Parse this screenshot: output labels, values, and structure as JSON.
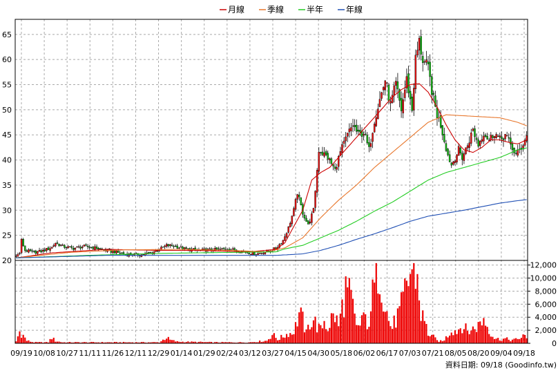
{
  "chart_data": {
    "type": "candlestick",
    "legend": [
      {
        "label": "月線",
        "color": "#cc0000"
      },
      {
        "label": "季線",
        "color": "#e8762b"
      },
      {
        "label": "半年",
        "color": "#22cc22"
      },
      {
        "label": "年線",
        "color": "#1f4fb4"
      }
    ],
    "x_tick_labels": [
      "09/19",
      "10/08",
      "10/27",
      "11/11",
      "11/26",
      "12/11",
      "12/29",
      "01/14",
      "01/29",
      "02/24",
      "03/12",
      "03/27",
      "04/15",
      "04/30",
      "05/18",
      "06/02",
      "06/17",
      "07/03",
      "07/21",
      "08/05",
      "08/20",
      "09/04",
      "09/18"
    ],
    "price_axis": {
      "ticks": [
        20,
        25,
        30,
        35,
        40,
        45,
        50,
        55,
        60,
        65
      ],
      "ylim": [
        20,
        68
      ]
    },
    "volume_axis": {
      "tick_labels": [
        "0",
        "2,000",
        "4,000",
        "6,000",
        "8,000",
        "10,000",
        "12,000"
      ],
      "tick_values": [
        0,
        2000,
        4000,
        6000,
        8000,
        10000,
        12000
      ],
      "ylim": [
        0,
        12500
      ]
    },
    "price_anchors": [
      [
        0,
        20.8
      ],
      [
        2,
        21.5
      ],
      [
        3,
        24.0
      ],
      [
        5,
        22.0
      ],
      [
        10,
        21.6
      ],
      [
        15,
        21.9
      ],
      [
        20,
        22.6
      ],
      [
        22,
        23.5
      ],
      [
        26,
        22.8
      ],
      [
        32,
        22.4
      ],
      [
        38,
        22.8
      ],
      [
        44,
        22.5
      ],
      [
        50,
        22.0
      ],
      [
        56,
        21.6
      ],
      [
        62,
        21.2
      ],
      [
        70,
        21.1
      ],
      [
        76,
        21.6
      ],
      [
        80,
        22.2
      ],
      [
        84,
        23.0
      ],
      [
        88,
        22.9
      ],
      [
        94,
        22.3
      ],
      [
        102,
        22.0
      ],
      [
        110,
        22.1
      ],
      [
        118,
        22.3
      ],
      [
        126,
        21.8
      ],
      [
        134,
        21.3
      ],
      [
        140,
        21.8
      ],
      [
        145,
        22.4
      ],
      [
        149,
        24.0
      ],
      [
        152,
        26.5
      ],
      [
        155,
        30.0
      ],
      [
        157,
        33.5
      ],
      [
        160,
        29.5
      ],
      [
        163,
        27.0
      ],
      [
        166,
        30.0
      ],
      [
        169,
        42.0
      ],
      [
        174,
        40.5
      ],
      [
        178,
        38.0
      ],
      [
        181,
        41.5
      ],
      [
        185,
        45.0
      ],
      [
        188,
        47.0
      ],
      [
        191,
        45.0
      ],
      [
        194,
        45.5
      ],
      [
        197,
        42.0
      ],
      [
        200,
        48.0
      ],
      [
        203,
        52.0
      ],
      [
        206,
        56.0
      ],
      [
        209,
        51.0
      ],
      [
        212,
        55.0
      ],
      [
        215,
        50.0
      ],
      [
        218,
        56.0
      ],
      [
        221,
        50.0
      ],
      [
        223,
        60.0
      ],
      [
        225,
        63.5
      ],
      [
        227,
        60.0
      ],
      [
        230,
        58.0
      ],
      [
        233,
        52.0
      ],
      [
        235,
        49.0
      ],
      [
        237,
        47.0
      ],
      [
        239,
        44.0
      ],
      [
        241,
        41.0
      ],
      [
        243,
        39.0
      ],
      [
        245,
        40.5
      ],
      [
        247,
        42.0
      ],
      [
        249,
        40.5
      ],
      [
        252,
        43.0
      ],
      [
        255,
        46.0
      ],
      [
        258,
        43.0
      ],
      [
        261,
        45.5
      ],
      [
        264,
        44.0
      ],
      [
        267,
        45.5
      ],
      [
        270,
        44.0
      ],
      [
        273,
        45.0
      ],
      [
        276,
        43.0
      ],
      [
        279,
        41.0
      ],
      [
        282,
        42.5
      ],
      [
        285,
        44.8
      ]
    ],
    "volume_anchors": [
      [
        0,
        300
      ],
      [
        2,
        1800
      ],
      [
        4,
        1200
      ],
      [
        6,
        400
      ],
      [
        10,
        150
      ],
      [
        18,
        150
      ],
      [
        20,
        900
      ],
      [
        22,
        350
      ],
      [
        26,
        150
      ],
      [
        40,
        150
      ],
      [
        60,
        150
      ],
      [
        80,
        150
      ],
      [
        84,
        900
      ],
      [
        86,
        500
      ],
      [
        90,
        250
      ],
      [
        110,
        150
      ],
      [
        130,
        150
      ],
      [
        140,
        400
      ],
      [
        143,
        1400
      ],
      [
        146,
        600
      ],
      [
        150,
        1200
      ],
      [
        152,
        1600
      ],
      [
        154,
        1500
      ],
      [
        156,
        2600
      ],
      [
        158,
        4600
      ],
      [
        160,
        3500
      ],
      [
        162,
        1500
      ],
      [
        164,
        3200
      ],
      [
        166,
        3800
      ],
      [
        168,
        2600
      ],
      [
        170,
        2000
      ],
      [
        172,
        3500
      ],
      [
        174,
        2300
      ],
      [
        176,
        3800
      ],
      [
        178,
        4200
      ],
      [
        180,
        2600
      ],
      [
        182,
        5600
      ],
      [
        184,
        8200
      ],
      [
        186,
        7200
      ],
      [
        188,
        5400
      ],
      [
        190,
        2200
      ],
      [
        192,
        3000
      ],
      [
        194,
        4700
      ],
      [
        196,
        1800
      ],
      [
        198,
        6100
      ],
      [
        200,
        8300
      ],
      [
        202,
        12400
      ],
      [
        204,
        10200
      ],
      [
        206,
        6200
      ],
      [
        208,
        3300
      ],
      [
        210,
        2400
      ],
      [
        212,
        3700
      ],
      [
        214,
        4600
      ],
      [
        216,
        6300
      ],
      [
        218,
        8900
      ],
      [
        220,
        10600
      ],
      [
        222,
        12400
      ],
      [
        224,
        9800
      ],
      [
        226,
        4600
      ],
      [
        228,
        3300
      ],
      [
        230,
        1500
      ],
      [
        232,
        1200
      ],
      [
        235,
        400
      ],
      [
        238,
        300
      ],
      [
        241,
        1200
      ],
      [
        243,
        2100
      ],
      [
        246,
        1900
      ],
      [
        249,
        2800
      ],
      [
        252,
        1800
      ],
      [
        255,
        2200
      ],
      [
        258,
        2700
      ],
      [
        261,
        3800
      ],
      [
        264,
        2100
      ],
      [
        267,
        800
      ],
      [
        270,
        600
      ],
      [
        273,
        700
      ],
      [
        276,
        500
      ],
      [
        280,
        600
      ],
      [
        283,
        1200
      ],
      [
        285,
        700
      ]
    ],
    "ma_lines": {
      "月線": [
        [
          0,
          20.5
        ],
        [
          20,
          21.5
        ],
        [
          50,
          22.2
        ],
        [
          80,
          22.0
        ],
        [
          100,
          22.0
        ],
        [
          130,
          21.7
        ],
        [
          145,
          22.2
        ],
        [
          150,
          23.5
        ],
        [
          160,
          30.0
        ],
        [
          165,
          36.0
        ],
        [
          170,
          37.5
        ],
        [
          175,
          38.5
        ],
        [
          180,
          40.5
        ],
        [
          185,
          42.5
        ],
        [
          190,
          44.5
        ],
        [
          195,
          46.5
        ],
        [
          200,
          48.5
        ],
        [
          205,
          50.5
        ],
        [
          210,
          52.5
        ],
        [
          215,
          54.0
        ],
        [
          220,
          55.0
        ],
        [
          225,
          55.2
        ],
        [
          230,
          53.5
        ],
        [
          235,
          50.5
        ],
        [
          240,
          47.0
        ],
        [
          245,
          44.0
        ],
        [
          250,
          42.0
        ],
        [
          255,
          41.5
        ],
        [
          260,
          42.5
        ],
        [
          265,
          44.0
        ],
        [
          270,
          44.0
        ],
        [
          275,
          43.5
        ],
        [
          280,
          43.2
        ],
        [
          285,
          44.0
        ]
      ],
      "季線": [
        [
          0,
          20.5
        ],
        [
          30,
          21.6
        ],
        [
          60,
          22.1
        ],
        [
          90,
          22.2
        ],
        [
          120,
          22.0
        ],
        [
          140,
          21.7
        ],
        [
          150,
          22.5
        ],
        [
          160,
          24.5
        ],
        [
          170,
          28.5
        ],
        [
          180,
          32.0
        ],
        [
          190,
          35.0
        ],
        [
          200,
          38.5
        ],
        [
          210,
          41.5
        ],
        [
          220,
          44.5
        ],
        [
          230,
          47.5
        ],
        [
          240,
          49.0
        ],
        [
          250,
          48.8
        ],
        [
          260,
          48.6
        ],
        [
          270,
          48.4
        ],
        [
          280,
          47.5
        ],
        [
          285,
          46.8
        ]
      ],
      "半年": [
        [
          0,
          20.5
        ],
        [
          40,
          21.0
        ],
        [
          80,
          21.4
        ],
        [
          120,
          21.6
        ],
        [
          145,
          21.7
        ],
        [
          150,
          22.3
        ],
        [
          160,
          23.0
        ],
        [
          170,
          24.5
        ],
        [
          180,
          26.0
        ],
        [
          190,
          27.8
        ],
        [
          200,
          29.8
        ],
        [
          210,
          31.6
        ],
        [
          220,
          33.8
        ],
        [
          230,
          36.0
        ],
        [
          240,
          37.5
        ],
        [
          250,
          38.5
        ],
        [
          260,
          39.5
        ],
        [
          270,
          40.5
        ],
        [
          280,
          42.0
        ],
        [
          285,
          42.4
        ]
      ],
      "年線": [
        [
          0,
          20.5
        ],
        [
          50,
          21.0
        ],
        [
          100,
          21.0
        ],
        [
          145,
          21.0
        ],
        [
          160,
          21.3
        ],
        [
          170,
          22.0
        ],
        [
          180,
          23.0
        ],
        [
          190,
          24.2
        ],
        [
          200,
          25.3
        ],
        [
          210,
          26.5
        ],
        [
          220,
          27.8
        ],
        [
          230,
          28.8
        ],
        [
          240,
          29.4
        ],
        [
          250,
          30.0
        ],
        [
          260,
          30.7
        ],
        [
          270,
          31.4
        ],
        [
          280,
          31.9
        ],
        [
          285,
          32.1
        ]
      ]
    }
  },
  "source_label": "資料日期: 09/18 (Goodinfo.tw)"
}
